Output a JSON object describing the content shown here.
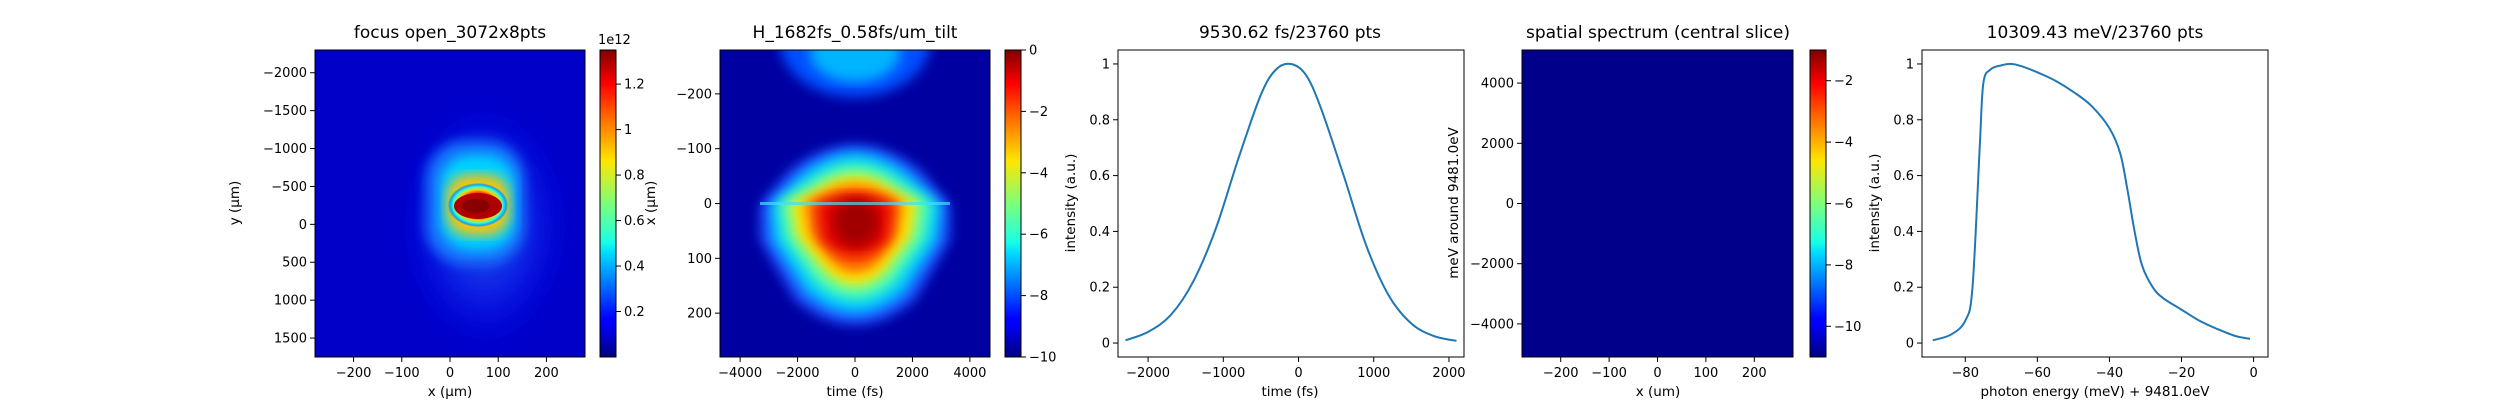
{
  "chart_data": [
    {
      "type": "heatmap",
      "title": "focus open_3072x8pts",
      "xlabel": "x (μm)",
      "ylabel": "y (μm)",
      "xlim": [
        -280,
        280
      ],
      "ylim": [
        1750,
        -2300
      ],
      "xticks": [
        -200,
        -100,
        0,
        100,
        200
      ],
      "yticks": [
        -2000,
        -1500,
        -1000,
        -500,
        0,
        500,
        1000,
        1500
      ],
      "colormap": "jet",
      "colorbar": {
        "min": 0,
        "max": 1.35,
        "ticks": [
          0.2,
          0.4,
          0.6,
          0.8,
          1.0,
          1.2
        ],
        "offset_label": "1e12"
      },
      "features": [
        {
          "kind": "core",
          "x_range": [
            0,
            120
          ],
          "y_range": [
            -150,
            250
          ],
          "value": 1.3
        },
        {
          "kind": "halo",
          "x_range": [
            -20,
            140
          ],
          "y_range": [
            -700,
            650
          ],
          "value": 0.25
        }
      ]
    },
    {
      "type": "heatmap",
      "title": "H_1682fs_0.58fs/um_tilt",
      "xlabel": "time (fs)",
      "ylabel": "x (μm)",
      "xlim": [
        -4700,
        4700
      ],
      "ylim": [
        280,
        -280
      ],
      "xticks": [
        -4000,
        -2000,
        0,
        2000,
        4000
      ],
      "yticks": [
        -200,
        -100,
        0,
        100,
        200
      ],
      "colormap": "jet",
      "colorbar": {
        "min": -10,
        "max": 0,
        "ticks": [
          0,
          -2,
          -4,
          -6,
          -8,
          -10
        ]
      },
      "features": [
        {
          "kind": "main_lobe",
          "t_center": 0,
          "x_center": 50,
          "value": 0
        },
        {
          "kind": "side_lobe",
          "t_center": 0,
          "x_center": -250,
          "value": -4
        }
      ]
    },
    {
      "type": "line",
      "title": "9530.62 fs/23760 pts",
      "xlabel": "time (fs)",
      "ylabel": "intensity (a.u.)",
      "xlim": [
        -2400,
        2200
      ],
      "ylim": [
        -0.05,
        1.05
      ],
      "xticks": [
        -2000,
        -1000,
        0,
        1000,
        2000
      ],
      "yticks": [
        0.0,
        0.2,
        0.4,
        0.6,
        0.8,
        1.0
      ],
      "series": [
        {
          "x": [
            -2300,
            -2000,
            -1700,
            -1400,
            -1100,
            -800,
            -500,
            -300,
            -100,
            100,
            300,
            600,
            900,
            1200,
            1500,
            1800,
            2100
          ],
          "y": [
            0.01,
            0.04,
            0.1,
            0.22,
            0.41,
            0.66,
            0.89,
            0.98,
            1.0,
            0.96,
            0.84,
            0.6,
            0.35,
            0.17,
            0.07,
            0.025,
            0.008
          ]
        }
      ]
    },
    {
      "type": "heatmap",
      "title": "spatial spectrum (central slice)",
      "xlabel": "x (um)",
      "ylabel": "meV around 9481.0eV",
      "xlim": [
        -280,
        280
      ],
      "ylim": [
        -5100,
        5100
      ],
      "xticks": [
        -200,
        -100,
        0,
        100,
        200
      ],
      "yticks": [
        4000,
        2000,
        0,
        -2000,
        -4000
      ],
      "colormap": "jet",
      "colorbar": {
        "min": -11,
        "max": -1,
        "ticks": [
          -2,
          -4,
          -6,
          -8,
          -10
        ]
      },
      "fill_value": -11
    },
    {
      "type": "line",
      "title": "10309.43 meV/23760 pts",
      "xlabel": "photon energy (meV) + 9481.0eV",
      "ylabel": "intensity (a.u.)",
      "xlim": [
        -92,
        4
      ],
      "ylim": [
        -0.05,
        1.05
      ],
      "xticks": [
        -80,
        -60,
        -40,
        -20,
        0
      ],
      "yticks": [
        0.0,
        0.2,
        0.4,
        0.6,
        0.8,
        1.0
      ],
      "series": [
        {
          "x": [
            -89,
            -84,
            -80,
            -78,
            -76,
            -75,
            -73,
            -70,
            -67,
            -64,
            -60,
            -55,
            -50,
            -45,
            -40,
            -37,
            -35,
            -33,
            -31,
            -28,
            -25,
            -20,
            -15,
            -10,
            -5,
            -1
          ],
          "y": [
            0.01,
            0.03,
            0.08,
            0.2,
            0.7,
            0.93,
            0.98,
            0.995,
            1.0,
            0.99,
            0.97,
            0.94,
            0.9,
            0.85,
            0.77,
            0.68,
            0.55,
            0.4,
            0.28,
            0.2,
            0.16,
            0.12,
            0.08,
            0.05,
            0.025,
            0.015
          ]
        }
      ]
    }
  ]
}
